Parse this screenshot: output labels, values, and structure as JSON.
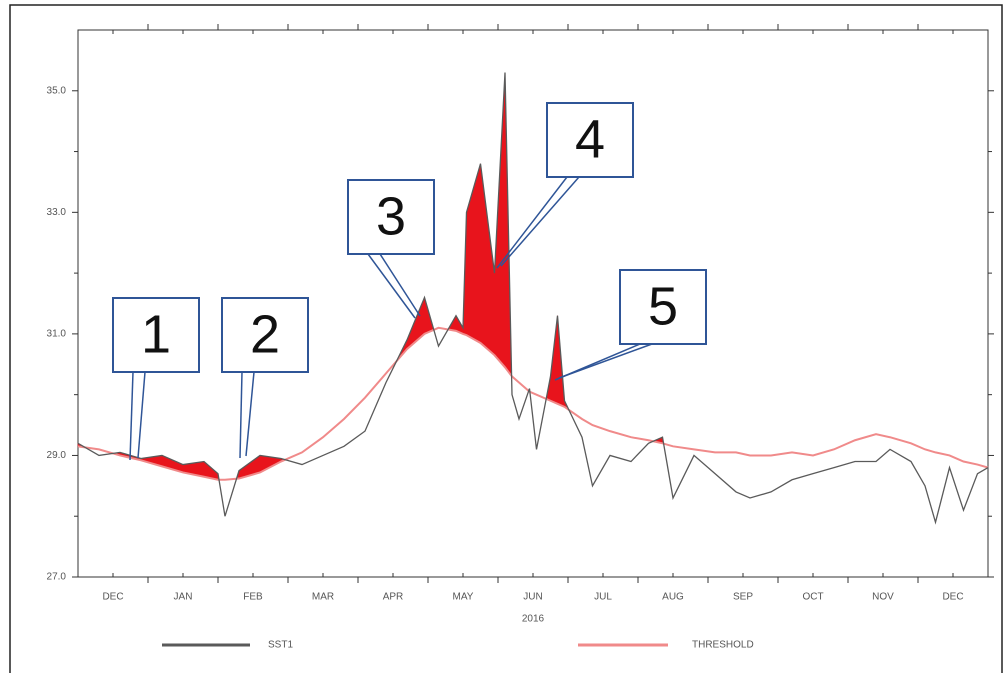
{
  "chart_data": {
    "type": "line",
    "x": [
      0.0,
      0.3,
      0.6,
      0.9,
      1.2,
      1.5,
      1.8,
      2.0,
      2.1,
      2.3,
      2.6,
      2.9,
      3.2,
      3.5,
      3.8,
      4.1,
      4.4,
      4.7,
      4.95,
      5.15,
      5.4,
      5.5,
      5.55,
      5.75,
      5.95,
      6.1,
      6.2,
      6.3,
      6.45,
      6.55,
      6.75,
      6.85,
      6.95,
      7.2,
      7.35,
      7.6,
      7.9,
      8.15,
      8.35,
      8.5,
      8.8,
      9.1,
      9.4,
      9.6,
      9.9,
      10.2,
      10.5,
      10.8,
      11.1,
      11.4,
      11.6,
      11.9,
      12.1,
      12.25,
      12.45,
      12.65,
      12.85,
      13.0
    ],
    "series": [
      {
        "name": "SST1",
        "color": "#5a5a5a",
        "values": [
          29.2,
          29.0,
          29.05,
          28.95,
          29.0,
          28.85,
          28.9,
          28.7,
          28.0,
          28.75,
          29.0,
          28.95,
          28.85,
          29.0,
          29.15,
          29.4,
          30.2,
          30.9,
          31.6,
          30.8,
          31.3,
          31.1,
          33.0,
          33.8,
          32.0,
          35.3,
          30.0,
          29.6,
          30.1,
          29.1,
          30.3,
          31.3,
          29.9,
          29.3,
          28.5,
          29.0,
          28.9,
          29.2,
          29.3,
          28.3,
          29.0,
          28.7,
          28.4,
          28.3,
          28.4,
          28.6,
          28.7,
          28.8,
          28.9,
          28.9,
          29.1,
          28.9,
          28.5,
          27.9,
          28.8,
          28.1,
          28.7,
          28.8
        ]
      },
      {
        "name": "THRESHOLD",
        "color": "#f08a8a",
        "values": [
          29.15,
          29.1,
          29.0,
          28.92,
          28.82,
          28.72,
          28.65,
          28.6,
          28.6,
          28.62,
          28.72,
          28.9,
          29.05,
          29.3,
          29.6,
          29.95,
          30.35,
          30.75,
          31.0,
          31.1,
          31.05,
          31.0,
          30.98,
          30.85,
          30.65,
          30.45,
          30.3,
          30.2,
          30.05,
          30.0,
          29.9,
          29.85,
          29.8,
          29.6,
          29.5,
          29.4,
          29.3,
          29.25,
          29.2,
          29.15,
          29.1,
          29.05,
          29.05,
          29.0,
          29.0,
          29.05,
          29.0,
          29.1,
          29.25,
          29.35,
          29.3,
          29.2,
          29.1,
          29.05,
          29.0,
          28.9,
          28.85,
          28.8
        ]
      }
    ],
    "exceed_color": "#e8141c",
    "xlim": [
      0,
      13
    ],
    "xticks": [
      {
        "value": 0.5,
        "label": "DEC"
      },
      {
        "value": 1.5,
        "label": "JAN"
      },
      {
        "value": 2.5,
        "label": "FEB"
      },
      {
        "value": 3.5,
        "label": "MAR"
      },
      {
        "value": 4.5,
        "label": "APR"
      },
      {
        "value": 5.5,
        "label": "MAY"
      },
      {
        "value": 6.5,
        "label": "JUN"
      },
      {
        "value": 7.5,
        "label": "JUL"
      },
      {
        "value": 8.5,
        "label": "AUG"
      },
      {
        "value": 9.5,
        "label": "SEP"
      },
      {
        "value": 10.5,
        "label": "OCT"
      },
      {
        "value": 11.5,
        "label": "NOV"
      },
      {
        "value": 12.5,
        "label": "DEC"
      }
    ],
    "minor_xticks": [
      1,
      2,
      3,
      4,
      5,
      6,
      7,
      8,
      9,
      10,
      11,
      12
    ],
    "x_sublabel": "2016",
    "ylim": [
      27,
      36
    ],
    "yticks": [
      {
        "value": 27,
        "label": "27.0"
      },
      {
        "value": 29,
        "label": "29.0"
      },
      {
        "value": 31,
        "label": "31.0"
      },
      {
        "value": 33,
        "label": "33.0"
      },
      {
        "value": 35,
        "label": "35.0"
      }
    ],
    "minor_yticks": [
      28,
      30,
      32,
      34
    ],
    "annotations": [
      "1",
      "2",
      "3",
      "4",
      "5"
    ]
  }
}
